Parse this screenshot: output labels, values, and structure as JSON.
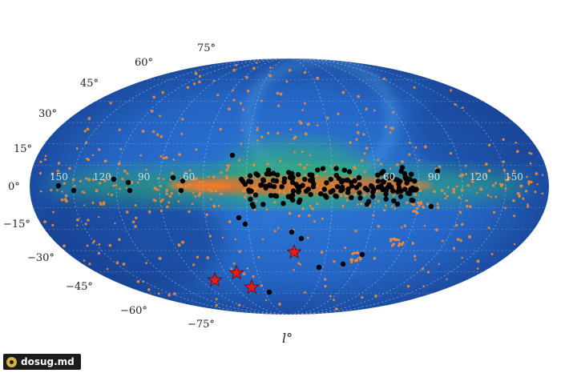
{
  "map": {
    "x_axis_label": "l°",
    "latitude_labels": [
      "75°",
      "60°",
      "45°",
      "30°",
      "15°",
      "0°",
      "−15°",
      "−30°",
      "−45°",
      "−60°",
      "−75°"
    ],
    "longitude_labels": [
      "150",
      "120",
      "90",
      "60",
      "60",
      "90",
      "120",
      "150"
    ],
    "colors": {
      "background_dark": "#163a86",
      "background_mid": "#2a6fd0",
      "plane_green": "#3fbf6a",
      "plane_orange": "#ff6a1a",
      "orange_points": "#f08a3a",
      "black_points": "#000000",
      "star_markers": "#e51c1c"
    },
    "markers": {
      "black_points": "black dots concentrated near the galactic plane",
      "orange_points": "orange dots scattered across the sky",
      "star_markers": "red star symbols in the southern hemisphere"
    }
  },
  "watermark": {
    "text": "dosug.md",
    "icon": "dosug-logo-icon"
  }
}
